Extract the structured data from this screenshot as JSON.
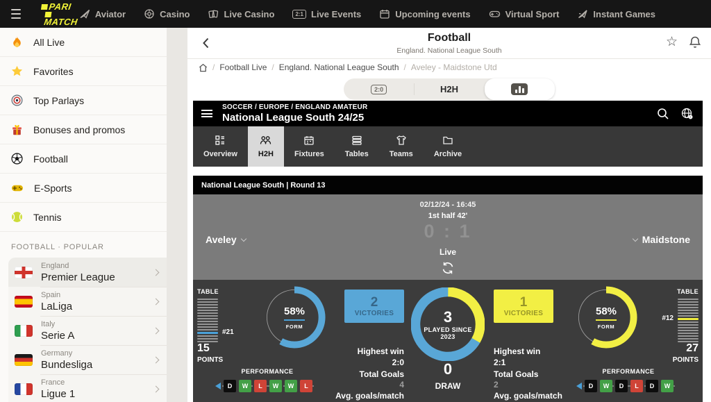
{
  "navbar": {
    "logo_line1": "PARI",
    "logo_line2": "MATCH",
    "items": [
      {
        "label": "Aviator"
      },
      {
        "label": "Casino"
      },
      {
        "label": "Live Casino"
      },
      {
        "label": "Live Events",
        "badge": "2:1"
      },
      {
        "label": "Upcoming events"
      },
      {
        "label": "Virtual Sport"
      },
      {
        "label": "Instant Games"
      }
    ]
  },
  "sidebar": {
    "items": [
      {
        "icon": "flame-icon",
        "label": "All Live"
      },
      {
        "icon": "star-icon",
        "label": "Favorites"
      },
      {
        "icon": "target-icon",
        "label": "Top Parlays"
      },
      {
        "icon": "gift-icon",
        "label": "Bonuses and promos"
      },
      {
        "icon": "football-icon",
        "label": "Football"
      },
      {
        "icon": "gamepad-icon",
        "label": "E-Sports"
      },
      {
        "icon": "tennis-icon",
        "label": "Tennis"
      }
    ],
    "section_label": "FOOTBALL · POPULAR",
    "leagues": [
      {
        "country": "England",
        "league": "Premier League"
      },
      {
        "country": "Spain",
        "league": "LaLiga"
      },
      {
        "country": "Italy",
        "league": "Serie A"
      },
      {
        "country": "Germany",
        "league": "Bundesliga"
      },
      {
        "country": "France",
        "league": "Ligue 1"
      }
    ]
  },
  "header": {
    "title": "Football",
    "subtitle": "England. National League South"
  },
  "breadcrumb": {
    "items": [
      "Football Live",
      "England. National League South",
      "Aveley - Maidstone Utd"
    ]
  },
  "view_tabs": {
    "score_badge": "2:0",
    "h2h_label": "H2H"
  },
  "widget": {
    "category_path": "SOCCER / EUROPE / ENGLAND AMATEUR",
    "title": "National League South 24/25",
    "tabs": [
      {
        "label": "Overview"
      },
      {
        "label": "H2H"
      },
      {
        "label": "Fixtures"
      },
      {
        "label": "Tables"
      },
      {
        "label": "Teams"
      },
      {
        "label": "Archive"
      }
    ],
    "selected_tab": "H2H",
    "round_label": "National League South | Round 13",
    "match": {
      "date": "02/12/24 - 16:45",
      "period": "1st half 42'",
      "score": "0 : 1",
      "home_team": "Aveley",
      "away_team": "Maidstone",
      "status": "Live"
    },
    "stats": {
      "labels": {
        "table": "TABLE",
        "points": "POINTS",
        "form": "FORM",
        "victories": "VICTORIES",
        "performance": "PERFORMANCE",
        "highest_win": "Highest win",
        "total_goals": "Total Goals",
        "avg_goals": "Avg. goals/match",
        "played_since": "PLAYED SINCE",
        "draw": "DRAW"
      },
      "home": {
        "rank": "#21",
        "points": "15",
        "form_value": 58,
        "form_text": "58%",
        "victories": "2",
        "highest_win": "2:0",
        "total_goals": "4",
        "performance": [
          "D",
          "W",
          "L",
          "W",
          "W",
          "L"
        ],
        "ladder": {
          "bars": 16,
          "highlight_index": 12,
          "highlight_color": "#4aa0d8"
        }
      },
      "h2h": {
        "played": "3",
        "played_value": 3,
        "home_victories_value": 2,
        "away_victories_value": 1,
        "year": "2023",
        "draw": "0"
      },
      "away": {
        "rank": "#12",
        "points": "27",
        "form_value": 58,
        "form_text": "58%",
        "victories": "1",
        "highest_win": "2:1",
        "total_goals": "2",
        "performance": [
          "D",
          "W",
          "D",
          "L",
          "D",
          "W"
        ],
        "ladder": {
          "bars": 16,
          "highlight_index": 7,
          "highlight_color": "#eeeb3d"
        }
      },
      "colors": {
        "blue": "#59a7d7",
        "yellow": "#f2ef44",
        "green": "#43a047",
        "red": "#cf4437",
        "black_box": "#0d0d0d"
      }
    }
  }
}
